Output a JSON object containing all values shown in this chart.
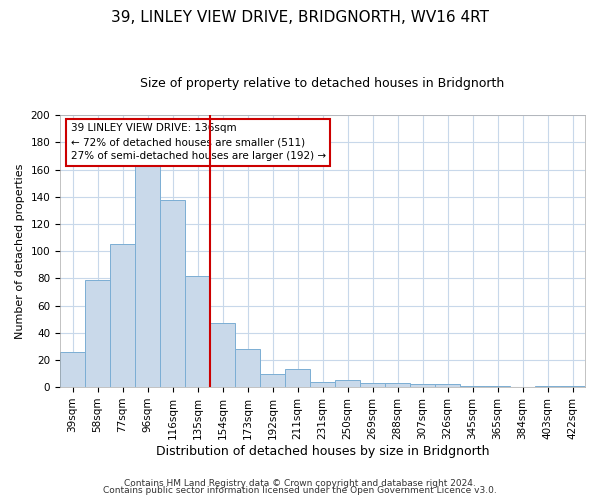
{
  "title": "39, LINLEY VIEW DRIVE, BRIDGNORTH, WV16 4RT",
  "subtitle": "Size of property relative to detached houses in Bridgnorth",
  "bar_labels": [
    "39sqm",
    "58sqm",
    "77sqm",
    "96sqm",
    "116sqm",
    "135sqm",
    "154sqm",
    "173sqm",
    "192sqm",
    "211sqm",
    "231sqm",
    "250sqm",
    "269sqm",
    "288sqm",
    "307sqm",
    "326sqm",
    "345sqm",
    "365sqm",
    "384sqm",
    "403sqm",
    "422sqm"
  ],
  "bar_values": [
    26,
    79,
    105,
    165,
    138,
    82,
    47,
    28,
    10,
    13,
    4,
    5,
    3,
    3,
    2,
    2,
    1,
    1,
    0,
    1,
    1
  ],
  "bar_color": "#c9d9ea",
  "bar_edge_color": "#7baed4",
  "bar_width": 1.0,
  "ylim": [
    0,
    200
  ],
  "yticks": [
    0,
    20,
    40,
    60,
    80,
    100,
    120,
    140,
    160,
    180,
    200
  ],
  "ylabel": "Number of detached properties",
  "xlabel": "Distribution of detached houses by size in Bridgnorth",
  "vline_idx": 5,
  "vline_color": "#cc0000",
  "annotation_line1": "39 LINLEY VIEW DRIVE: 136sqm",
  "annotation_line2": "← 72% of detached houses are smaller (511)",
  "annotation_line3": "27% of semi-detached houses are larger (192) →",
  "annotation_box_color": "#ffffff",
  "annotation_box_edge": "#cc0000",
  "footer_line1": "Contains HM Land Registry data © Crown copyright and database right 2024.",
  "footer_line2": "Contains public sector information licensed under the Open Government Licence v3.0.",
  "background_color": "#ffffff",
  "grid_color": "#c8d8ea",
  "title_fontsize": 11,
  "subtitle_fontsize": 9,
  "ylabel_fontsize": 8,
  "xlabel_fontsize": 9,
  "tick_fontsize": 7.5,
  "footer_fontsize": 6.5
}
